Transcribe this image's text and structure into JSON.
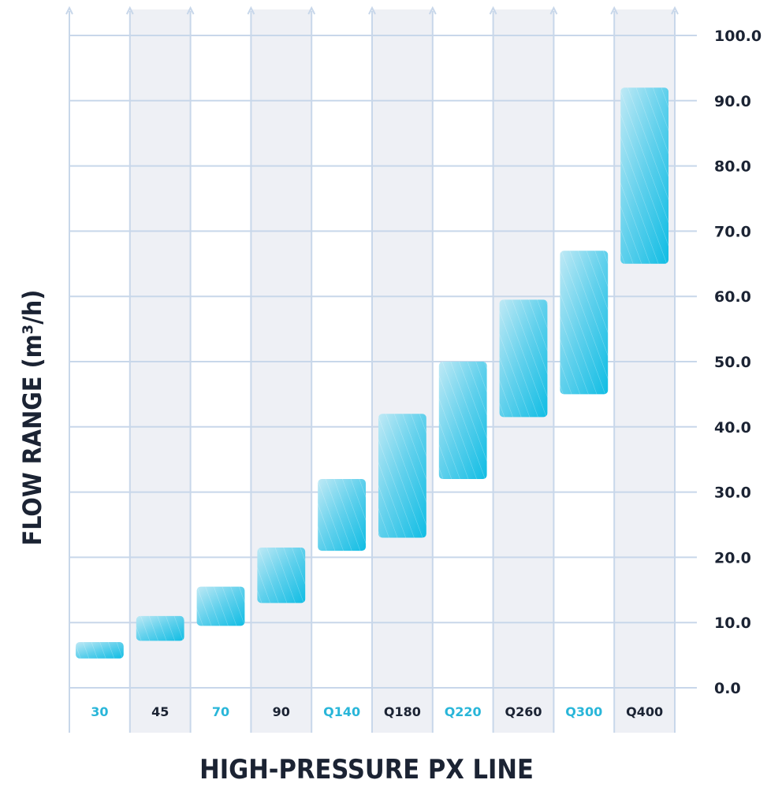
{
  "chart_data": {
    "type": "bar",
    "subtype": "floating-range",
    "xlabel": "HIGH-PRESSURE PX LINE",
    "ylabel": "FLOW RANGE (m³/h)",
    "ylim": [
      0,
      100
    ],
    "yticks": [
      "0.0",
      "10.0",
      "20.0",
      "30.0",
      "40.0",
      "50.0",
      "60.0",
      "70.0",
      "80.0",
      "90.0",
      "100.0"
    ],
    "grid": true,
    "categories": [
      "30",
      "45",
      "70",
      "90",
      "Q140",
      "Q180",
      "Q220",
      "Q260",
      "Q300",
      "Q400"
    ],
    "category_colors": [
      "#29b6d9",
      "#1b2333",
      "#29b6d9",
      "#1b2333",
      "#29b6d9",
      "#1b2333",
      "#29b6d9",
      "#1b2333",
      "#29b6d9",
      "#1b2333"
    ],
    "ranges": [
      {
        "min": 4.5,
        "max": 7.0
      },
      {
        "min": 7.2,
        "max": 11.0
      },
      {
        "min": 9.5,
        "max": 15.5
      },
      {
        "min": 13.0,
        "max": 21.5
      },
      {
        "min": 21.0,
        "max": 32.0
      },
      {
        "min": 23.0,
        "max": 42.0
      },
      {
        "min": 32.0,
        "max": 50.0
      },
      {
        "min": 41.5,
        "max": 59.5
      },
      {
        "min": 45.0,
        "max": 67.0
      },
      {
        "min": 65.0,
        "max": 92.0
      }
    ],
    "bar_color": "#19bde2"
  }
}
